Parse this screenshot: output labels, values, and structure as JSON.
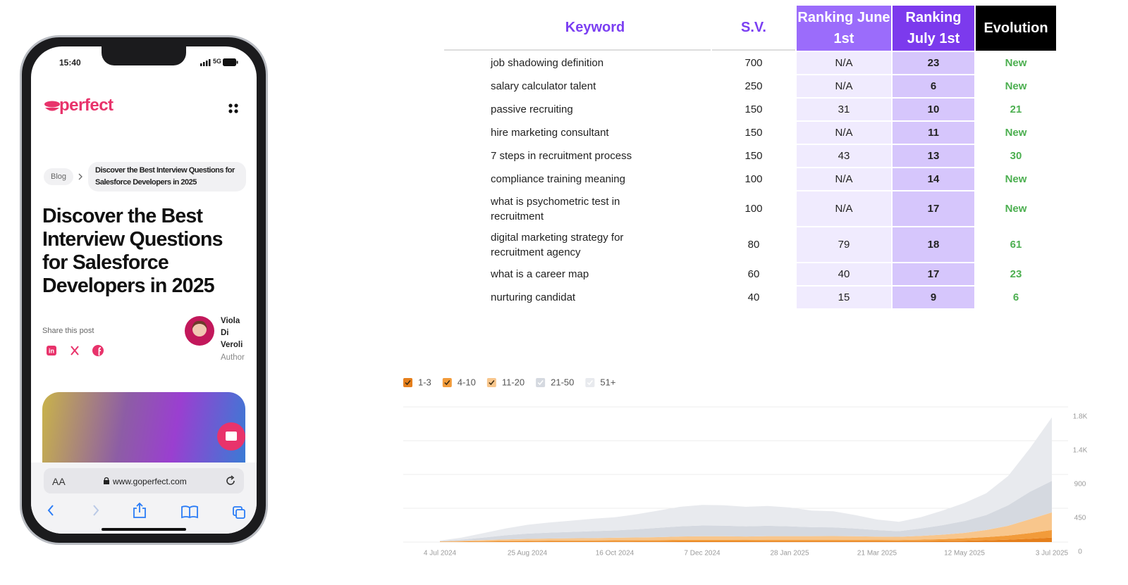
{
  "phone": {
    "status_time": "15:40",
    "network": "5G",
    "logo": "perfect",
    "breadcrumb": {
      "root": "Blog",
      "current": "Discover the Best Interview Questions for Salesforce Developers in 2025"
    },
    "title": "Discover the Best Interview Questions for Salesforce Developers in 2025",
    "share_label": "Share this post",
    "author": {
      "name": "Viola Di Veroli",
      "role": "Author"
    },
    "text_size": "AA",
    "url": "www.goperfect.com"
  },
  "table": {
    "columns": [
      "Keyword",
      "S.V.",
      "Ranking June 1st",
      "Ranking July 1st",
      "Evolution"
    ],
    "rows": [
      [
        "job shadowing definition",
        700,
        "N/A",
        23,
        "New"
      ],
      [
        "salary calculator talent",
        250,
        "N/A",
        6,
        "New"
      ],
      [
        "passive recruiting",
        150,
        31,
        10,
        21
      ],
      [
        "hire marketing consultant",
        150,
        "N/A",
        11,
        "New"
      ],
      [
        "7 steps in recruitment process",
        150,
        43,
        13,
        30
      ],
      [
        "compliance training meaning",
        100,
        "N/A",
        14,
        "New"
      ],
      [
        "what is psychometric test in recruitment",
        100,
        "N/A",
        17,
        "New"
      ],
      [
        "digital marketing strategy for recruitment agency",
        80,
        79,
        18,
        61
      ],
      [
        "what is a career map",
        60,
        40,
        17,
        23
      ],
      [
        "nurturing candidat",
        40,
        15,
        9,
        6
      ]
    ]
  },
  "chart_data": {
    "type": "stacked-area",
    "categories": [
      "4 Jul 2024",
      null,
      null,
      null,
      "25 Aug 2024",
      null,
      null,
      null,
      "16 Oct 2024",
      null,
      null,
      null,
      "7 Dec 2024",
      null,
      null,
      null,
      "28 Jan 2025",
      null,
      null,
      null,
      "21 Mar 2025",
      null,
      null,
      null,
      "12 May 2025",
      null,
      null,
      null,
      "3 Jul 2025"
    ],
    "ylim": [
      0,
      1800
    ],
    "yticks": [
      0,
      450,
      900,
      {
        "value": 1350,
        "label": "1.4K"
      },
      {
        "value": 1800,
        "label": "1.8K"
      }
    ],
    "grid": true,
    "legend": "top-left",
    "series": [
      {
        "name": "1-3",
        "color": "#e57f1c",
        "values": [
          2,
          3,
          4,
          5,
          5,
          6,
          6,
          6,
          7,
          8,
          8,
          9,
          9,
          9,
          9,
          10,
          10,
          10,
          10,
          10,
          10,
          10,
          12,
          14,
          18,
          24,
          32,
          45,
          60
        ]
      },
      {
        "name": "4-10",
        "color": "#f29b3a",
        "values": [
          3,
          5,
          8,
          10,
          12,
          13,
          14,
          15,
          16,
          17,
          18,
          20,
          20,
          20,
          19,
          20,
          20,
          20,
          20,
          19,
          18,
          17,
          20,
          25,
          32,
          42,
          55,
          75,
          100
        ]
      },
      {
        "name": "11-20",
        "color": "#f8c68c",
        "values": [
          5,
          10,
          15,
          20,
          25,
          28,
          30,
          32,
          34,
          36,
          40,
          45,
          48,
          48,
          46,
          48,
          48,
          48,
          50,
          48,
          45,
          43,
          50,
          60,
          72,
          95,
          130,
          185,
          235
        ]
      },
      {
        "name": "21-50",
        "color": "#d5d9e0",
        "values": [
          5,
          15,
          33,
          55,
          70,
          78,
          85,
          92,
          98,
          109,
          124,
          136,
          143,
          141,
          136,
          139,
          132,
          120,
          116,
          103,
          86,
          75,
          98,
          126,
          158,
          199,
          273,
          365,
          420
        ]
      },
      {
        "name": "51+",
        "color": "#e8eaee",
        "values": [
          5,
          27,
          60,
          90,
          118,
          135,
          150,
          165,
          175,
          200,
          230,
          260,
          275,
          272,
          260,
          263,
          250,
          222,
          214,
          180,
          141,
          125,
          150,
          195,
          240,
          290,
          390,
          580,
          845
        ]
      }
    ]
  }
}
